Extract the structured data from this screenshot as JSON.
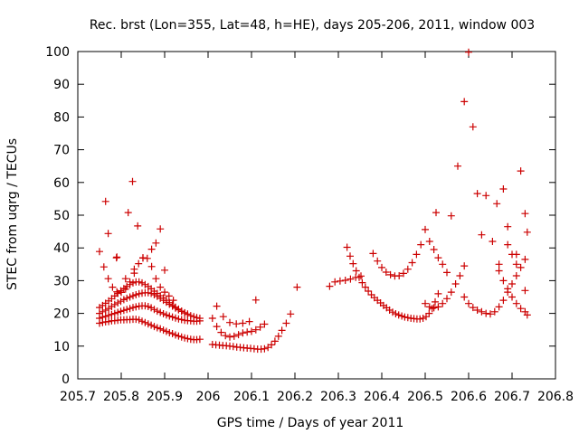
{
  "chart_data": {
    "type": "scatter",
    "title": "Rec. brst (Lon=355, Lat=48, h=HE), days 205-206, 2011, window 003",
    "xlabel": "GPS time / Days of year 2011",
    "ylabel": "STEC from uqrg / TECUs",
    "xlim": [
      205.7,
      206.8
    ],
    "ylim": [
      0,
      100
    ],
    "xticks": [
      205.7,
      205.8,
      205.9,
      206.0,
      206.1,
      206.2,
      206.3,
      206.4,
      206.5,
      206.6,
      206.7,
      206.8
    ],
    "xtick_labels": [
      "205.7",
      "205.8",
      "205.9",
      "206",
      "206.1",
      "206.2",
      "206.3",
      "206.4",
      "206.5",
      "206.6",
      "206.7",
      "206.8"
    ],
    "yticks": [
      0,
      10,
      20,
      30,
      40,
      50,
      60,
      70,
      80,
      90,
      100
    ],
    "ytick_labels": [
      "0",
      "10",
      "20",
      "30",
      "40",
      "50",
      "60",
      "70",
      "80",
      "90",
      "100"
    ],
    "grid": false,
    "marker": "+",
    "color": "#cc0000",
    "series": [
      {
        "x": [
          205.75,
          205.757,
          205.764,
          205.771,
          205.778,
          205.785,
          205.792,
          205.799,
          205.806,
          205.813,
          205.82,
          205.827,
          205.834,
          205.841,
          205.848,
          205.855,
          205.862,
          205.869,
          205.876,
          205.883,
          205.89,
          205.897,
          205.904,
          205.911,
          205.918,
          205.925,
          205.932,
          205.939,
          205.946,
          205.953,
          205.96,
          205.967,
          205.974,
          205.981
        ],
        "y": [
          17.0,
          17.2,
          17.4,
          17.5,
          17.7,
          17.8,
          17.9,
          18.0,
          18.0,
          18.1,
          18.1,
          18.2,
          18.2,
          18.0,
          17.6,
          17.2,
          16.8,
          16.4,
          16.0,
          15.6,
          15.3,
          14.9,
          14.5,
          14.1,
          13.8,
          13.4,
          13.1,
          12.8,
          12.5,
          12.3,
          12.1,
          12.0,
          12.0,
          12.1
        ]
      },
      {
        "x": [
          205.75,
          205.757,
          205.764,
          205.771,
          205.778,
          205.785,
          205.792,
          205.799,
          205.806,
          205.813,
          205.82,
          205.827,
          205.834,
          205.841,
          205.848,
          205.855,
          205.862,
          205.869,
          205.876,
          205.883,
          205.89,
          205.897,
          205.904,
          205.911,
          205.918,
          205.925,
          205.932,
          205.939,
          205.946,
          205.953,
          205.96,
          205.967,
          205.974,
          205.981
        ],
        "y": [
          18.5,
          18.8,
          19.1,
          19.4,
          19.7,
          20.0,
          20.3,
          20.6,
          20.9,
          21.2,
          21.5,
          21.8,
          22.0,
          22.2,
          22.3,
          22.3,
          22.1,
          21.7,
          21.2,
          20.7,
          20.3,
          19.9,
          19.5,
          19.2,
          18.9,
          18.6,
          18.3,
          18.1,
          17.9,
          17.8,
          17.7,
          17.6,
          17.6,
          17.7
        ]
      },
      {
        "x": [
          205.75,
          205.757,
          205.764,
          205.771,
          205.778,
          205.785,
          205.792,
          205.799,
          205.806,
          205.813,
          205.82,
          205.827,
          205.834,
          205.841,
          205.848,
          205.855,
          205.862,
          205.869,
          205.876,
          205.883,
          205.89,
          205.897,
          205.904,
          205.911,
          205.918,
          205.925,
          205.932,
          205.939,
          205.946,
          205.953,
          205.96,
          205.967,
          205.974,
          205.981
        ],
        "y": [
          20.0,
          20.5,
          21.0,
          21.5,
          22.1,
          22.7,
          23.2,
          23.7,
          24.2,
          24.6,
          25.0,
          25.4,
          25.7,
          26.0,
          26.2,
          26.3,
          26.3,
          26.1,
          25.7,
          25.2,
          24.6,
          24.0,
          23.4,
          22.8,
          22.2,
          21.6,
          21.1,
          20.6,
          20.1,
          19.7,
          19.3,
          19.0,
          18.7,
          18.5
        ]
      },
      {
        "x": [
          205.75,
          205.757,
          205.764,
          205.771,
          205.778,
          205.785,
          205.792,
          205.799,
          205.806,
          205.813,
          205.82,
          205.827,
          205.834,
          205.841,
          205.848,
          205.855,
          205.862,
          205.869,
          205.876,
          205.883,
          205.89,
          205.897,
          205.904,
          205.911,
          205.918,
          205.925,
          205.932,
          205.939,
          205.946,
          205.953
        ],
        "y": [
          21.8,
          22.4,
          23.1,
          23.8,
          24.5,
          25.3,
          26.1,
          26.9,
          27.6,
          28.2,
          28.8,
          29.3,
          29.6,
          29.6,
          29.3,
          28.8,
          28.2,
          27.5,
          26.8,
          26.1,
          25.4,
          24.7,
          24.0,
          23.3,
          22.6,
          21.9,
          21.3,
          20.7,
          20.2,
          19.8
        ]
      },
      {
        "x": [
          205.75,
          205.76,
          205.77,
          205.78,
          205.79,
          205.8,
          205.81,
          205.82,
          205.83,
          205.84,
          205.85,
          205.86,
          205.87,
          205.88,
          205.89,
          205.9,
          205.91,
          205.92
        ],
        "y": [
          38.9,
          34.2,
          30.6,
          28.0,
          26.6,
          26.4,
          27.4,
          29.6,
          32.3,
          35.2,
          36.9,
          36.8,
          34.3,
          30.6,
          28.0,
          26.5,
          25.3,
          24.0
        ]
      },
      {
        "x": [
          205.77,
          205.79,
          205.81,
          205.83,
          205.85,
          205.87,
          205.89
        ],
        "y": [
          44.4,
          37.2,
          30.6,
          33.5,
          37.0,
          39.6,
          45.8
        ]
      },
      {
        "x": [
          205.764,
          205.789,
          205.816,
          205.826,
          205.838,
          205.88,
          205.9
        ],
        "y": [
          54.2,
          37.0,
          50.8,
          60.3,
          46.7,
          41.5,
          33.2
        ]
      },
      {
        "x": [
          206.01,
          206.018,
          206.026,
          206.034,
          206.042,
          206.05,
          206.058,
          206.066,
          206.074,
          206.082,
          206.09,
          206.098,
          206.106,
          206.114,
          206.122,
          206.13,
          206.138,
          206.146,
          206.154,
          206.162,
          206.17,
          206.18,
          206.19,
          206.205
        ],
        "y": [
          10.5,
          10.4,
          10.3,
          10.2,
          10.1,
          10.0,
          9.9,
          9.7,
          9.6,
          9.5,
          9.4,
          9.3,
          9.2,
          9.1,
          9.1,
          9.2,
          9.6,
          10.4,
          11.5,
          13.0,
          14.8,
          17.0,
          19.8,
          28.0
        ]
      },
      {
        "x": [
          206.01,
          206.02,
          206.03,
          206.04,
          206.05,
          206.06,
          206.07,
          206.08,
          206.09,
          206.1,
          206.11,
          206.12,
          206.13
        ],
        "y": [
          18.5,
          16.0,
          14.2,
          13.2,
          12.8,
          13.0,
          13.5,
          14.0,
          14.3,
          14.5,
          15.0,
          15.8,
          16.7
        ]
      },
      {
        "x": [
          206.02,
          206.035,
          206.05,
          206.065,
          206.08,
          206.095,
          206.11
        ],
        "y": [
          22.2,
          19.0,
          17.2,
          16.8,
          17.0,
          17.5,
          24.1
        ]
      },
      {
        "x": [
          206.28,
          206.292,
          206.304,
          206.316,
          206.328,
          206.34,
          206.352
        ],
        "y": [
          28.3,
          29.6,
          29.9,
          30.1,
          30.5,
          31.0,
          31.4
        ]
      },
      {
        "x": [
          206.32,
          206.327,
          206.334,
          206.341,
          206.348,
          206.355,
          206.362,
          206.369,
          206.376,
          206.383,
          206.39,
          206.397,
          206.404,
          206.411,
          206.418,
          206.425,
          206.432,
          206.439,
          206.446,
          206.453,
          206.46,
          206.467,
          206.474,
          206.481,
          206.488,
          206.495,
          206.502,
          206.509,
          206.516,
          206.523,
          206.53
        ],
        "y": [
          40.2,
          37.5,
          35.2,
          33.0,
          31.0,
          29.4,
          28.0,
          26.8,
          25.7,
          24.8,
          24.0,
          23.2,
          22.4,
          21.7,
          21.0,
          20.4,
          19.9,
          19.5,
          19.2,
          18.9,
          18.7,
          18.5,
          18.4,
          18.3,
          18.3,
          18.5,
          19.0,
          20.0,
          21.5,
          23.5,
          26.0
        ]
      },
      {
        "x": [
          206.38,
          206.39,
          206.4,
          206.41,
          206.42,
          206.43,
          206.44,
          206.45,
          206.46,
          206.47,
          206.48,
          206.49,
          206.5,
          206.51,
          206.52,
          206.53,
          206.54,
          206.55
        ],
        "y": [
          38.3,
          36.0,
          34.0,
          32.6,
          31.8,
          31.4,
          31.5,
          32.2,
          33.5,
          35.5,
          38.0,
          41.0,
          45.6,
          42.0,
          39.5,
          37.0,
          35.0,
          32.5
        ]
      },
      {
        "x": [
          206.5,
          206.51,
          206.52,
          206.53,
          206.54,
          206.55,
          206.56,
          206.57,
          206.58,
          206.59
        ],
        "y": [
          23.0,
          22.0,
          21.7,
          22.0,
          23.0,
          24.5,
          26.5,
          29.0,
          31.5,
          34.5
        ]
      },
      {
        "x": [
          206.525,
          206.56,
          206.575,
          206.59,
          206.6,
          206.61,
          206.62,
          206.63
        ],
        "y": [
          50.8,
          49.8,
          65.0,
          84.7,
          99.8,
          77.0,
          56.6,
          44.0
        ]
      },
      {
        "x": [
          206.59,
          206.6,
          206.61,
          206.62,
          206.63,
          206.64,
          206.65,
          206.66,
          206.67,
          206.68,
          206.69,
          206.7,
          206.71,
          206.72,
          206.73
        ],
        "y": [
          25.0,
          23.0,
          21.8,
          21.0,
          20.5,
          20.0,
          19.8,
          20.5,
          22.0,
          24.0,
          26.5,
          29.0,
          31.5,
          34.0,
          36.5
        ]
      },
      {
        "x": [
          206.64,
          206.655,
          206.665,
          206.68,
          206.69,
          206.7,
          206.71,
          206.72,
          206.73
        ],
        "y": [
          56.0,
          42.0,
          53.5,
          58.0,
          46.5,
          38.0,
          35.0,
          63.5,
          50.5
        ]
      },
      {
        "x": [
          206.67,
          206.68,
          206.69,
          206.7,
          206.71,
          206.72,
          206.73,
          206.735
        ],
        "y": [
          33.0,
          30.0,
          27.5,
          25.0,
          23.0,
          21.5,
          20.5,
          19.5
        ]
      },
      {
        "x": [
          206.67,
          206.69,
          206.71,
          206.73,
          206.735
        ],
        "y": [
          35.0,
          41.0,
          38.0,
          27.0,
          44.8
        ]
      }
    ]
  }
}
